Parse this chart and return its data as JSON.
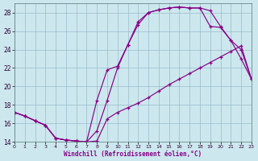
{
  "xlabel": "Windchill (Refroidissement éolien,°C)",
  "background_color": "#cce8ee",
  "line_color": "#880088",
  "grid_color": "#99bbcc",
  "xlim": [
    0,
    23
  ],
  "ylim": [
    14,
    29
  ],
  "yticks": [
    14,
    16,
    18,
    20,
    22,
    24,
    26,
    28
  ],
  "xticks": [
    0,
    1,
    2,
    3,
    4,
    5,
    6,
    7,
    8,
    9,
    10,
    11,
    12,
    13,
    14,
    15,
    16,
    17,
    18,
    19,
    20,
    21,
    22,
    23
  ],
  "line1_x": [
    0,
    1,
    2,
    3,
    4,
    5,
    6,
    7,
    8,
    9,
    10,
    11,
    12,
    13,
    14,
    15,
    16,
    17,
    18,
    19,
    20,
    21,
    22,
    23
  ],
  "line1_y": [
    17.2,
    16.8,
    16.3,
    15.8,
    14.4,
    14.2,
    14.1,
    14.0,
    14.1,
    16.5,
    17.2,
    17.7,
    18.2,
    18.8,
    19.5,
    20.2,
    20.8,
    21.4,
    22.0,
    22.6,
    23.2,
    23.8,
    24.4,
    20.8
  ],
  "line2_x": [
    0,
    1,
    2,
    3,
    4,
    5,
    6,
    7,
    8,
    9,
    10,
    11,
    12,
    13,
    14,
    15,
    16,
    17,
    18,
    19,
    20,
    21,
    22,
    23
  ],
  "line2_y": [
    17.2,
    16.8,
    16.3,
    15.8,
    14.4,
    14.2,
    14.1,
    14.0,
    18.5,
    21.8,
    22.2,
    24.5,
    26.7,
    28.0,
    28.3,
    28.5,
    28.6,
    28.5,
    28.5,
    28.2,
    26.5,
    25.0,
    24.0,
    20.8
  ],
  "line3_x": [
    0,
    1,
    2,
    3,
    4,
    5,
    6,
    7,
    8,
    9,
    10,
    11,
    12,
    13,
    14,
    15,
    16,
    17,
    18,
    19,
    20,
    21,
    22,
    23
  ],
  "line3_y": [
    17.2,
    16.8,
    16.3,
    15.8,
    14.4,
    14.2,
    14.1,
    14.0,
    15.2,
    18.5,
    22.0,
    24.5,
    27.0,
    28.0,
    28.3,
    28.5,
    28.6,
    28.5,
    28.5,
    26.5,
    26.4,
    25.0,
    23.0,
    20.8
  ]
}
